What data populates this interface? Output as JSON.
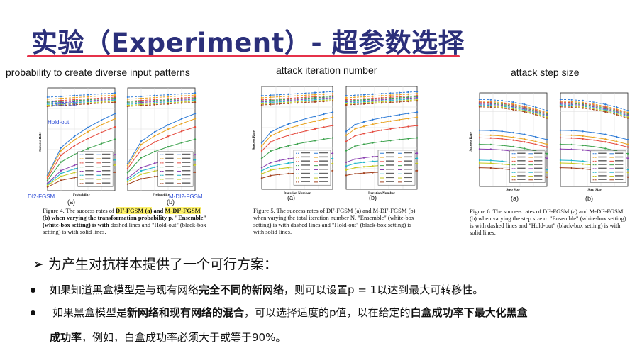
{
  "slide": {
    "title": "实验（Experiment）- 超参数选择",
    "headings": [
      "probability to create diverse input patterns",
      "attack iteration number",
      "attack step size"
    ],
    "fig4": {
      "caption_a": "Figure 4. The success rates of ",
      "caption_b": "DI²-FGSM (a)",
      "caption_c": " and ",
      "caption_d": "M-DI²-FGSM",
      "caption_e": " (b) when varying the transformation probability p. \"Ensemble\" (white-box setting) is with ",
      "caption_f": "dashed lines",
      "caption_g": " and \"Hold-out\" (black-box setting) is with solid lines.",
      "label_a": "(a)",
      "label_b": "(b)",
      "ensemble": "Ensemble",
      "holdout": "Hold-out",
      "left_tag": "DI2-FGSM",
      "right_tag": "M-DI2-FGSM",
      "xlabel": "Probability",
      "ylabel": "Success Rate"
    },
    "fig5": {
      "caption_a": "Figure 5. The success rates of DI²-FGSM (a) and M-DI²-FGSM (b) when varying the total iteration number N. \"Ensemble\" (white-box setting) is with ",
      "caption_f": "dashed lines",
      "caption_g": " and \"Hold-out\" (black-box setting) is with solid lines.",
      "label_a": "(a)",
      "label_b": "(b)",
      "xlabel": "Iteration Number",
      "ylabel": "Success Rate"
    },
    "fig6": {
      "caption": "Figure 6. The success rates of DI²-FGSM (a) and M-DI²-FGSM (b) when varying the step size α. \"Ensemble\" (white-box setting) is with dashed lines and \"Hold-out\" (black-box setting) is with solid lines.",
      "label_a": "(a)",
      "label_b": "(b)",
      "xlabel": "Step Size",
      "ylabel": "Success Rate"
    },
    "summary": "➢ 为产生对抗样本提供了一个可行方案：",
    "b1_a": "如果知道黑盒模型是与现有网络",
    "b1_b": "完全不同的新网络",
    "b1_c": "，则可以设置p = 1以达到最大可转移性。",
    "b2_a": "如果黑盒模型是",
    "b2_b": "新网络和现有网络的混合",
    "b2_c": "，可以选择适度的p值，以在给定的",
    "b2_d": "白盒成功率下最大化黑盒",
    "b2_e": "成功率",
    "b2_f": "，例如，白盒成功率必须大于或等于90%。"
  }
}
